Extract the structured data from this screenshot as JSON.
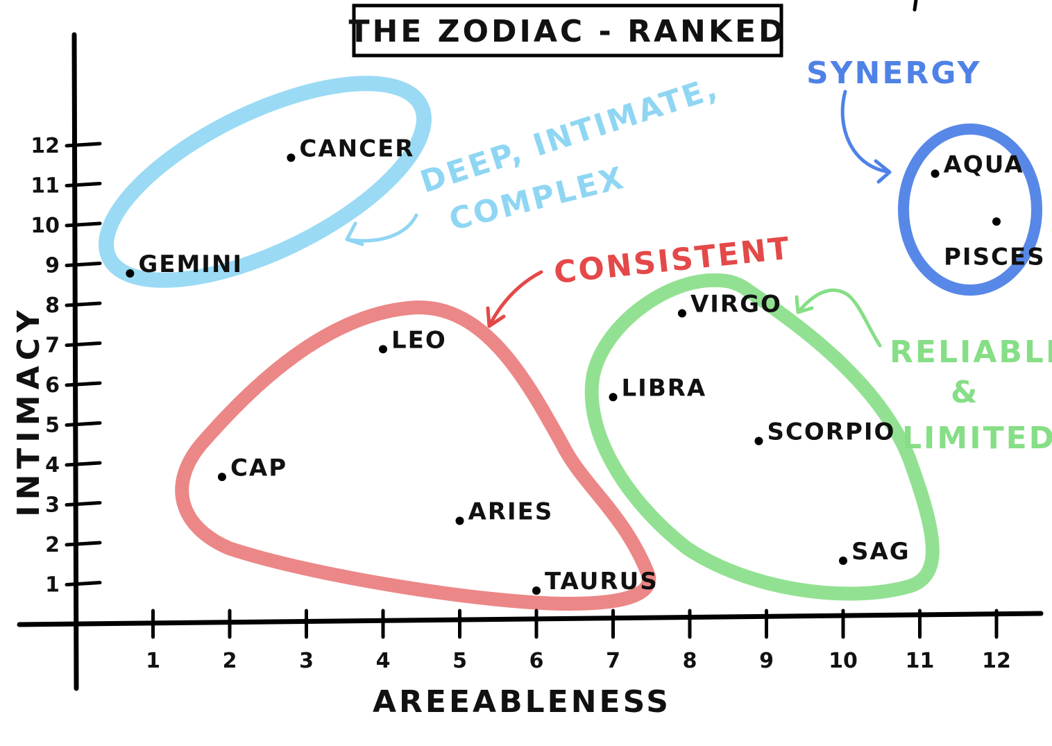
{
  "chart_data": {
    "type": "scatter",
    "title": "THE ZODIAC - RANKED",
    "xlabel": "AREEABLENESS",
    "ylabel": "INTIMACY",
    "xlim": [
      0,
      12.7
    ],
    "ylim": [
      0,
      13
    ],
    "x_ticks": [
      1,
      2,
      3,
      4,
      5,
      6,
      7,
      8,
      9,
      10,
      11,
      12
    ],
    "y_ticks": [
      1,
      2,
      3,
      4,
      5,
      6,
      7,
      8,
      9,
      10,
      11,
      12
    ],
    "grid": false,
    "points": [
      {
        "label": "GEMINI",
        "x": 0.7,
        "y": 8.8,
        "group": "deep"
      },
      {
        "label": "CANCER",
        "x": 2.8,
        "y": 11.7,
        "group": "deep"
      },
      {
        "label": "LEO",
        "x": 4.0,
        "y": 6.9,
        "group": "consistent"
      },
      {
        "label": "CAP",
        "x": 1.9,
        "y": 3.7,
        "group": "consistent"
      },
      {
        "label": "ARIES",
        "x": 5.0,
        "y": 2.6,
        "group": "consistent"
      },
      {
        "label": "TAURUS",
        "x": 6.0,
        "y": 0.85,
        "group": "consistent"
      },
      {
        "label": "VIRGO",
        "x": 7.9,
        "y": 7.8,
        "group": "reliable"
      },
      {
        "label": "LIBRA",
        "x": 7.0,
        "y": 5.7,
        "group": "reliable"
      },
      {
        "label": "SCORPIO",
        "x": 8.9,
        "y": 4.6,
        "group": "reliable"
      },
      {
        "label": "SAG",
        "x": 10.0,
        "y": 1.6,
        "group": "reliable"
      },
      {
        "label": "AQUA",
        "x": 11.2,
        "y": 11.3,
        "group": "synergy"
      },
      {
        "label": "PISCES",
        "x": 12.0,
        "y": 10.1,
        "group": "synergy"
      }
    ],
    "groups": [
      {
        "id": "deep",
        "color": "#8fd6f3",
        "annotation": [
          "DEEP, INTIMATE,",
          "COMPLEX"
        ]
      },
      {
        "id": "consistent",
        "color": "#ea7a7a",
        "annotation": [
          "CONSISTENT"
        ]
      },
      {
        "id": "reliable",
        "color": "#86de86",
        "annotation": [
          "RELIABLE",
          "&",
          "LIMITED"
        ]
      },
      {
        "id": "synergy",
        "color": "#4f82e6",
        "annotation": [
          "SYNERGY"
        ]
      }
    ]
  }
}
